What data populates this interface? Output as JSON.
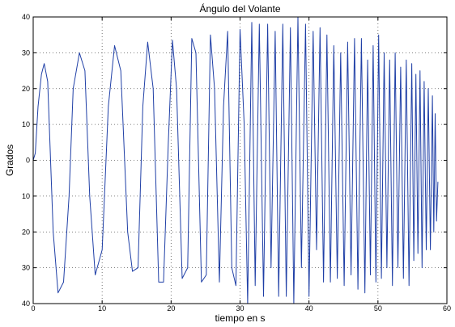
{
  "chart_data": {
    "type": "line",
    "title": "Ángulo del Volante",
    "xlabel": "tiempo en s",
    "ylabel": "Grados",
    "xlim": [
      0,
      60
    ],
    "ylim": [
      -40,
      40
    ],
    "x_ticks": [
      0,
      10,
      20,
      30,
      40,
      50,
      60
    ],
    "x_tick_labels": [
      "0",
      "10",
      "20",
      "30",
      "40",
      "50",
      "60"
    ],
    "y_ticks": [
      40,
      30,
      20,
      10,
      0,
      -10,
      -20,
      -30,
      -40
    ],
    "y_tick_labels": [
      "40",
      "30",
      "20",
      "10",
      "0",
      "10",
      "20",
      "30",
      "40"
    ],
    "grid": true,
    "grid_style": "dotted",
    "series": [
      {
        "color": "#1f3fa6",
        "x": [
          0,
          0.3,
          0.7,
          1.2,
          1.6,
          2.1,
          2.9,
          3.6,
          4.4,
          5.2,
          5.8,
          6.7,
          7.5,
          8.2,
          9.0,
          10.0,
          10.9,
          11.8,
          12.7,
          13.7,
          14.4,
          15.2,
          15.9,
          16.6,
          17.4,
          18.2,
          18.9,
          19.6,
          20.2,
          20.8,
          21.6,
          22.4,
          23.0,
          23.6,
          24.4,
          25.1,
          25.7,
          26.3,
          27.0,
          27.6,
          28.2,
          28.8,
          29.4,
          30.0,
          30.6,
          31.1,
          31.7,
          32.2,
          32.8,
          33.4,
          34.0,
          34.5,
          35.1,
          35.6,
          36.2,
          36.7,
          37.3,
          37.8,
          38.4,
          38.9,
          39.5,
          40.0,
          40.6,
          41.1,
          41.6,
          42.1,
          42.6,
          43.1,
          43.6,
          44.1,
          44.6,
          45.1,
          45.6,
          46.1,
          46.6,
          47.1,
          47.6,
          48.1,
          48.5,
          48.9,
          49.3,
          49.7,
          50.1,
          50.5,
          50.9,
          51.3,
          51.7,
          52.1,
          52.5,
          52.9,
          53.3,
          53.7,
          54.1,
          54.5,
          54.9,
          55.2,
          55.5,
          55.8,
          56.1,
          56.4,
          56.7,
          57.0,
          57.3,
          57.6,
          57.9,
          58.1,
          58.3,
          58.5,
          58.7
        ],
        "y": [
          0,
          2,
          15,
          24,
          27,
          22,
          -20,
          -37,
          -34,
          -10,
          20,
          30,
          25,
          -10,
          -32,
          -25,
          15,
          32,
          25,
          -20,
          -31,
          -30,
          15,
          33,
          20,
          -34,
          -34,
          5,
          33.5,
          20,
          -33,
          -30,
          34,
          30,
          -34,
          -32,
          35,
          20,
          -34,
          15,
          36,
          -30,
          -35,
          36.5,
          10,
          -40,
          38.5,
          -35,
          38,
          -38,
          38,
          -30,
          36,
          -38,
          38,
          -38,
          37,
          -40,
          40,
          -30,
          38,
          -38,
          36,
          -25,
          37,
          -34,
          35,
          -34,
          32,
          -33,
          30,
          -35,
          33,
          -32,
          34,
          -36,
          34,
          -37,
          28,
          -32,
          32,
          -34,
          35,
          -33,
          30,
          -30,
          28,
          -35,
          30,
          -30,
          26,
          -33,
          28,
          -35,
          27,
          -28,
          24,
          -26,
          25,
          -30,
          22,
          -25,
          20,
          -25,
          18,
          -20,
          13,
          -17,
          -6
        ]
      }
    ]
  }
}
